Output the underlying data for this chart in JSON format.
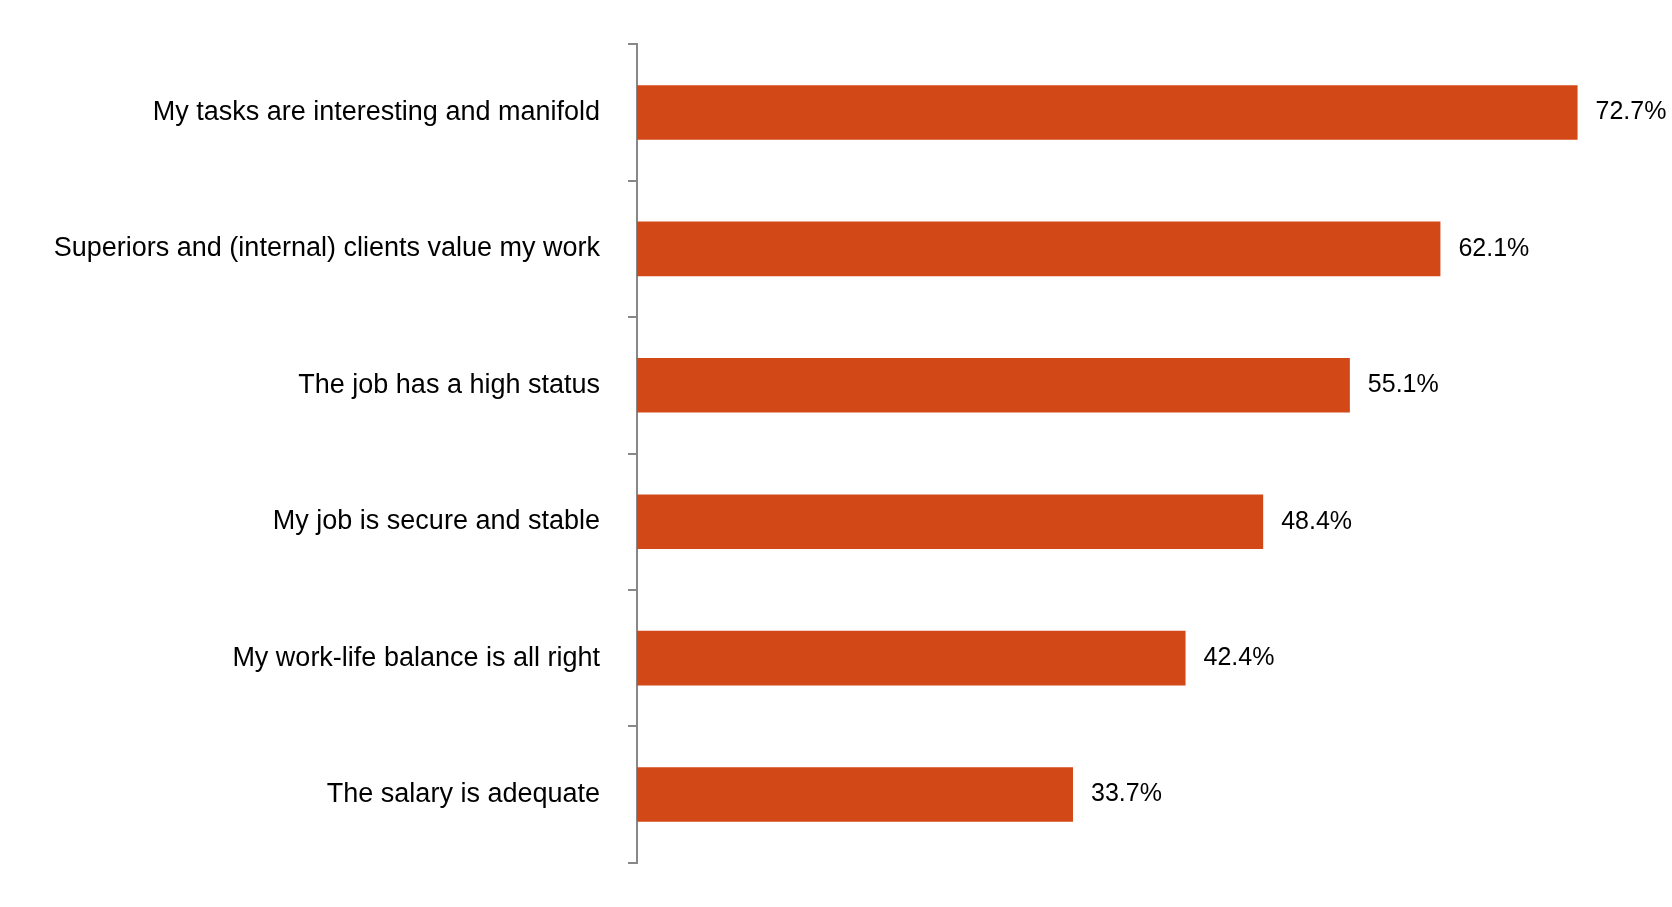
{
  "chart_data": {
    "type": "bar",
    "orientation": "horizontal",
    "categories": [
      "My tasks are interesting and manifold",
      "Superiors and (internal) clients value my work",
      "The job has a high status",
      "My job is secure and stable",
      "My work-life balance is all right",
      "The salary is adequate"
    ],
    "values": [
      72.7,
      62.1,
      55.1,
      48.4,
      42.4,
      33.7
    ],
    "value_labels": [
      "72.7%",
      "62.1%",
      "55.1%",
      "48.4%",
      "42.4%",
      "33.7%"
    ],
    "color": "#d34817",
    "tick_labels": "y",
    "legend": false
  }
}
